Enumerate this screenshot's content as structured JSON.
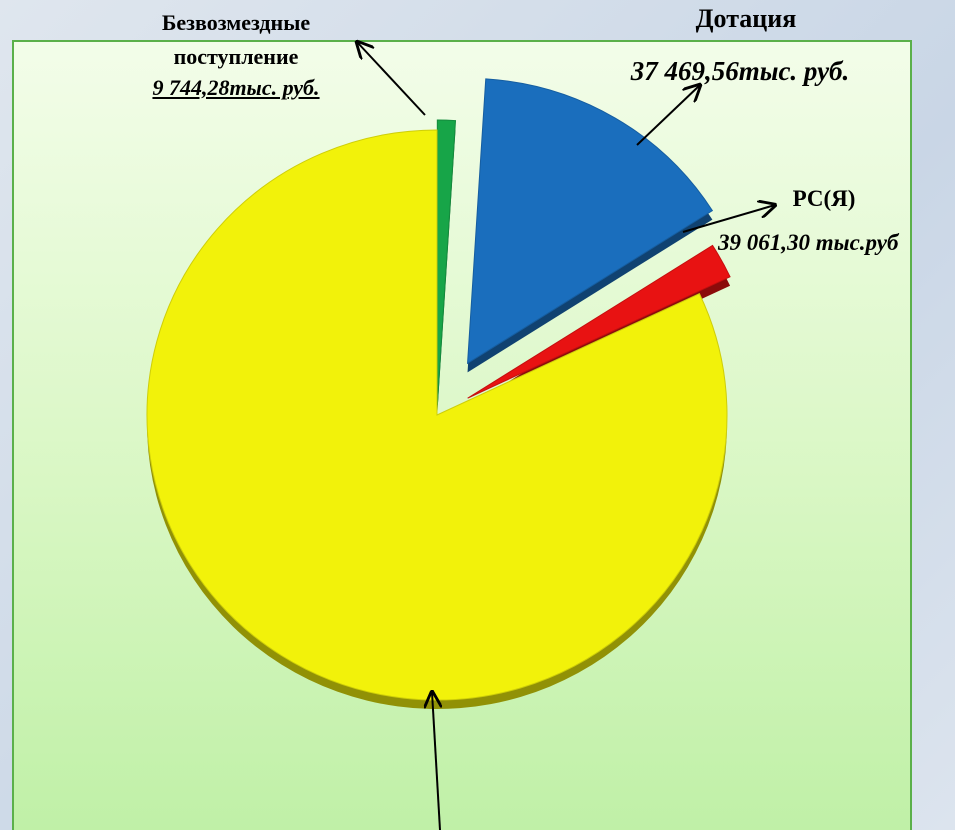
{
  "chart_data": {
    "type": "pie",
    "categories": [
      "Безвозмездные поступление",
      "Дотация",
      "РС(Я)",
      null
    ],
    "annotations": [
      "9 744,28тыс. руб.",
      "37 469,56тыс. руб.",
      "39 061,30 тыс.руб",
      null
    ],
    "values": [
      1,
      15,
      2,
      82
    ],
    "colors": [
      "#17a548",
      "#1a6ebd",
      "#e81212",
      "#f2f20a"
    ]
  }
}
